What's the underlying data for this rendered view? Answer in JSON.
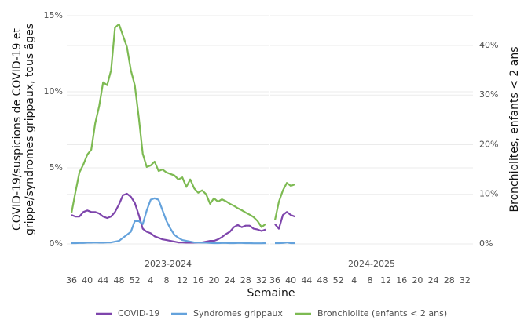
{
  "chart_data": {
    "type": "line",
    "xlabel": "Semaine",
    "ylabel": [
      "COVID-19/suspicions de COVID-19 et",
      "grippe/syndromes grippaux, tous âges"
    ],
    "y2label": "Bronchiolites, enfants < 2 ans",
    "categories": [
      36,
      null,
      null,
      null,
      40,
      null,
      null,
      null,
      44,
      null,
      null,
      null,
      48,
      null,
      null,
      null,
      52,
      null,
      null,
      null,
      4,
      null,
      null,
      null,
      8,
      null,
      null,
      null,
      12,
      null,
      null,
      null,
      16,
      null,
      null,
      null,
      20,
      null,
      null,
      null,
      24,
      null,
      null,
      null,
      28,
      null,
      null,
      null,
      32,
      null,
      null,
      null
    ],
    "ylim": [
      0,
      15
    ],
    "yticks": [
      {
        "value": 0,
        "label": "0%"
      },
      {
        "value": 5,
        "label": "5%"
      },
      {
        "value": 10,
        "label": "10%"
      },
      {
        "value": 15,
        "label": "15%"
      }
    ],
    "y2lim": [
      0,
      46
    ],
    "y2ticks": [
      {
        "value": 0,
        "label": "0%"
      },
      {
        "value": 10,
        "label": "10%"
      },
      {
        "value": 20,
        "label": "20%"
      },
      {
        "value": 30,
        "label": "30%"
      },
      {
        "value": 40,
        "label": "40%"
      }
    ],
    "grid": true,
    "legend": "bottom",
    "series": [
      {
        "name": "COVID-19",
        "color": "#7e45ac"
      },
      {
        "name": "Syndromes grippaux",
        "color": "#64a2dc"
      },
      {
        "name": "Bronchiolite (enfants < 2 ans)",
        "color": "#7dba52",
        "axis": "y2"
      }
    ],
    "facets": [
      {
        "label": "2023-2024",
        "series": [
          {
            "values": [
              1.9,
              1.8,
              1.8,
              2.1,
              2.2,
              2.1,
              2.1,
              2.0,
              1.8,
              1.7,
              1.8,
              2.1,
              2.6,
              3.2,
              3.3,
              3.1,
              2.7,
              1.9,
              1.0,
              0.8,
              0.7,
              0.5,
              0.4,
              0.3,
              0.25,
              0.2,
              0.15,
              0.1,
              0.1,
              0.08,
              0.08,
              0.08,
              0.1,
              0.1,
              0.15,
              0.2,
              0.2,
              0.3,
              0.45,
              0.65,
              0.8,
              1.1,
              1.25,
              1.1,
              1.2,
              1.2,
              1.0,
              0.95,
              0.85,
              0.95,
              null,
              null
            ]
          },
          {
            "values": [
              0.05,
              0.05,
              0.06,
              0.06,
              0.08,
              0.08,
              0.1,
              0.08,
              0.08,
              0.1,
              0.1,
              0.15,
              0.2,
              0.4,
              0.6,
              0.8,
              1.5,
              1.5,
              1.3,
              2.2,
              2.9,
              3.0,
              2.9,
              2.2,
              1.5,
              1.0,
              0.6,
              0.4,
              0.25,
              0.2,
              0.15,
              0.1,
              0.1,
              0.08,
              0.08,
              0.06,
              0.05,
              0.05,
              0.06,
              0.06,
              0.05,
              0.05,
              0.06,
              0.06,
              0.05,
              0.05,
              0.04,
              0.04,
              0.04,
              0.05,
              null,
              null
            ]
          },
          {
            "values": [
              6.2,
              10.4,
              14.4,
              16,
              18,
              19,
              24.3,
              27.8,
              32.6,
              32,
              35,
              43.6,
              44.3,
              42,
              39.7,
              35,
              32,
              25.5,
              18.2,
              15.5,
              15.8,
              16.6,
              14.7,
              15,
              14.4,
              14.1,
              13.8,
              13,
              13.4,
              11.5,
              13,
              11.2,
              10.3,
              10.8,
              10,
              8.1,
              9.2,
              8.5,
              9,
              8.6,
              8.1,
              7.7,
              7.2,
              6.8,
              6.3,
              5.9,
              5.4,
              4.6,
              3.4,
              4.0,
              null,
              null
            ]
          }
        ]
      },
      {
        "label": "2024-2025",
        "series": [
          {
            "values": [
              1.3,
              1.0,
              1.9,
              2.1,
              1.9,
              1.8,
              null,
              null,
              null,
              null,
              null,
              null,
              null,
              null,
              null,
              null,
              null,
              null,
              null,
              null,
              null,
              null,
              null,
              null,
              null,
              null,
              null,
              null,
              null,
              null,
              null,
              null,
              null,
              null,
              null,
              null,
              null,
              null,
              null,
              null,
              null,
              null,
              null,
              null,
              null,
              null,
              null,
              null,
              null,
              null,
              null,
              null
            ]
          },
          {
            "values": [
              0.05,
              0.05,
              0.06,
              0.1,
              0.05,
              0.05,
              null,
              null,
              null,
              null,
              null,
              null,
              null,
              null,
              null,
              null,
              null,
              null,
              null,
              null,
              null,
              null,
              null,
              null,
              null,
              null,
              null,
              null,
              null,
              null,
              null,
              null,
              null,
              null,
              null,
              null,
              null,
              null,
              null,
              null,
              null,
              null,
              null,
              null,
              null,
              null,
              null,
              null,
              null,
              null,
              null,
              null
            ]
          },
          {
            "values": [
              4.8,
              8.5,
              10.8,
              12.3,
              11.7,
              12,
              null,
              null,
              null,
              null,
              null,
              null,
              null,
              null,
              null,
              null,
              null,
              null,
              null,
              null,
              null,
              null,
              null,
              null,
              null,
              null,
              null,
              null,
              null,
              null,
              null,
              null,
              null,
              null,
              null,
              null,
              null,
              null,
              null,
              null,
              null,
              null,
              null,
              null,
              null,
              null,
              null,
              null,
              null,
              null,
              null,
              null
            ]
          }
        ]
      }
    ]
  }
}
